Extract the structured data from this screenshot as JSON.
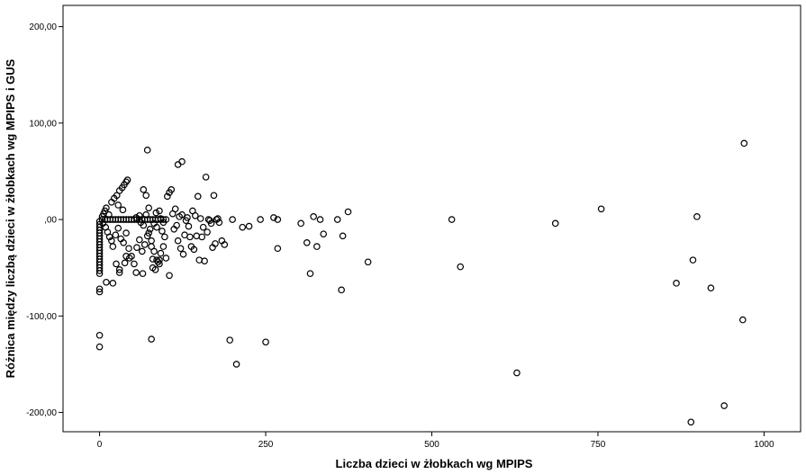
{
  "chart_data": {
    "type": "scatter",
    "title": "",
    "xlabel": "Liczba dzieci w żłobkach wg MPIPS",
    "ylabel": "Różnica między liczbą dzieci w żłobkach  wg MPIPS i GUS",
    "xlim": [
      -55,
      1055
    ],
    "ylim": [
      -220,
      222
    ],
    "x_ticks": [
      0,
      250,
      500,
      750,
      1000
    ],
    "x_tick_labels": [
      "0",
      "250",
      "500",
      "750",
      "1000"
    ],
    "y_ticks": [
      200,
      100,
      0,
      -100,
      -200
    ],
    "y_tick_labels": [
      "200,00",
      "100,00",
      ",00",
      "-100,00",
      "-200,00"
    ],
    "grid": false,
    "legend": "none",
    "marker": "open-circle",
    "series": [
      {
        "points": [
          [
            0,
            -2
          ],
          [
            0,
            -5
          ],
          [
            0,
            -8
          ],
          [
            0,
            -11
          ],
          [
            0,
            -14
          ],
          [
            0,
            -17
          ],
          [
            0,
            -20
          ],
          [
            0,
            -23
          ],
          [
            0,
            -26
          ],
          [
            0,
            -29
          ],
          [
            0,
            -32
          ],
          [
            0,
            -35
          ],
          [
            0,
            -38
          ],
          [
            0,
            -41
          ],
          [
            0,
            -44
          ],
          [
            0,
            -47
          ],
          [
            0,
            -50
          ],
          [
            0,
            -53
          ],
          [
            0,
            -56
          ],
          [
            0,
            -72
          ],
          [
            0,
            -75
          ],
          [
            0,
            -120
          ],
          [
            0,
            -132
          ],
          [
            4,
            0
          ],
          [
            8,
            0
          ],
          [
            12,
            0
          ],
          [
            16,
            0
          ],
          [
            20,
            0
          ],
          [
            24,
            0
          ],
          [
            28,
            0
          ],
          [
            32,
            0
          ],
          [
            36,
            0
          ],
          [
            40,
            0
          ],
          [
            44,
            0
          ],
          [
            48,
            0
          ],
          [
            52,
            0
          ],
          [
            56,
            0
          ],
          [
            60,
            0
          ],
          [
            64,
            0
          ],
          [
            68,
            0
          ],
          [
            72,
            0
          ],
          [
            76,
            0
          ],
          [
            80,
            0
          ],
          [
            84,
            0
          ],
          [
            88,
            0
          ],
          [
            92,
            0
          ],
          [
            96,
            0
          ],
          [
            4,
            3
          ],
          [
            6,
            6
          ],
          [
            8,
            9
          ],
          [
            10,
            12
          ],
          [
            14,
            5
          ],
          [
            18,
            18
          ],
          [
            22,
            22
          ],
          [
            26,
            25
          ],
          [
            30,
            30
          ],
          [
            34,
            33
          ],
          [
            37,
            36
          ],
          [
            40,
            39
          ],
          [
            42,
            41
          ],
          [
            28,
            15
          ],
          [
            35,
            10
          ],
          [
            5,
            -4
          ],
          [
            9,
            -8
          ],
          [
            12,
            -13
          ],
          [
            15,
            -18
          ],
          [
            18,
            -22
          ],
          [
            20,
            -28
          ],
          [
            24,
            -16
          ],
          [
            28,
            -9
          ],
          [
            32,
            -20
          ],
          [
            36,
            -24
          ],
          [
            40,
            -14
          ],
          [
            44,
            -30
          ],
          [
            48,
            -38
          ],
          [
            52,
            -46
          ],
          [
            56,
            -29
          ],
          [
            60,
            -21
          ],
          [
            64,
            -33
          ],
          [
            68,
            -26
          ],
          [
            72,
            -17
          ],
          [
            76,
            -10
          ],
          [
            80,
            -41
          ],
          [
            84,
            -52
          ],
          [
            88,
            -44
          ],
          [
            92,
            -35
          ],
          [
            96,
            -28
          ],
          [
            25,
            -46
          ],
          [
            38,
            -45
          ],
          [
            30,
            -55
          ],
          [
            45,
            -40
          ],
          [
            55,
            -55
          ],
          [
            65,
            -56
          ],
          [
            80,
            -50
          ],
          [
            90,
            -42
          ],
          [
            100,
            -40
          ],
          [
            105,
            -58
          ],
          [
            10,
            -65
          ],
          [
            20,
            -66
          ],
          [
            30,
            -52
          ],
          [
            40,
            -38
          ],
          [
            55,
            2
          ],
          [
            60,
            4
          ],
          [
            62,
            -3
          ],
          [
            66,
            -6
          ],
          [
            70,
            5
          ],
          [
            74,
            -14
          ],
          [
            78,
            -22
          ],
          [
            82,
            -4
          ],
          [
            86,
            -8
          ],
          [
            90,
            9
          ],
          [
            94,
            -12
          ],
          [
            98,
            -18
          ],
          [
            102,
            24
          ],
          [
            105,
            28
          ],
          [
            108,
            31
          ],
          [
            112,
            -10
          ],
          [
            116,
            -6
          ],
          [
            120,
            3
          ],
          [
            124,
            5
          ],
          [
            128,
            -16
          ],
          [
            132,
            2
          ],
          [
            136,
            -18
          ],
          [
            140,
            9
          ],
          [
            144,
            4
          ],
          [
            148,
            24
          ],
          [
            152,
            1
          ],
          [
            156,
            -8
          ],
          [
            160,
            44
          ],
          [
            164,
            0
          ],
          [
            168,
            -4
          ],
          [
            172,
            25
          ],
          [
            176,
            0
          ],
          [
            180,
            -3
          ],
          [
            184,
            -22
          ],
          [
            188,
            -26
          ],
          [
            66,
            31
          ],
          [
            70,
            25
          ],
          [
            74,
            12
          ],
          [
            78,
            -28
          ],
          [
            82,
            -33
          ],
          [
            86,
            -42
          ],
          [
            90,
            -46
          ],
          [
            100,
            0
          ],
          [
            110,
            6
          ],
          [
            114,
            11
          ],
          [
            118,
            -22
          ],
          [
            122,
            -30
          ],
          [
            126,
            -36
          ],
          [
            130,
            -1
          ],
          [
            134,
            -7
          ],
          [
            138,
            -28
          ],
          [
            142,
            -31
          ],
          [
            146,
            -17
          ],
          [
            150,
            -42
          ],
          [
            154,
            -18
          ],
          [
            158,
            -43
          ],
          [
            162,
            -13
          ],
          [
            166,
            -1
          ],
          [
            170,
            -29
          ],
          [
            174,
            -25
          ],
          [
            178,
            1
          ],
          [
            92,
            1
          ],
          [
            96,
            -3
          ],
          [
            85,
            7
          ],
          [
            72,
            72
          ],
          [
            118,
            57
          ],
          [
            124,
            60
          ],
          [
            78,
            -124
          ],
          [
            196,
            -125
          ],
          [
            206,
            -150
          ],
          [
            250,
            -127
          ],
          [
            200,
            0
          ],
          [
            215,
            -8
          ],
          [
            225,
            -7
          ],
          [
            242,
            0
          ],
          [
            262,
            2
          ],
          [
            268,
            0
          ],
          [
            268,
            -30
          ],
          [
            303,
            -4
          ],
          [
            312,
            -24
          ],
          [
            317,
            -56
          ],
          [
            322,
            3
          ],
          [
            327,
            -28
          ],
          [
            332,
            0
          ],
          [
            337,
            -15
          ],
          [
            358,
            0
          ],
          [
            364,
            -73
          ],
          [
            366,
            -17
          ],
          [
            374,
            8
          ],
          [
            404,
            -44
          ],
          [
            530,
            0
          ],
          [
            543,
            -49
          ],
          [
            628,
            -159
          ],
          [
            686,
            -4
          ],
          [
            755,
            11
          ],
          [
            868,
            -66
          ],
          [
            893,
            -42
          ],
          [
            899,
            3
          ],
          [
            920,
            -71
          ],
          [
            890,
            -210
          ],
          [
            940,
            -193
          ],
          [
            970,
            79
          ],
          [
            968,
            -104
          ]
        ]
      }
    ]
  }
}
